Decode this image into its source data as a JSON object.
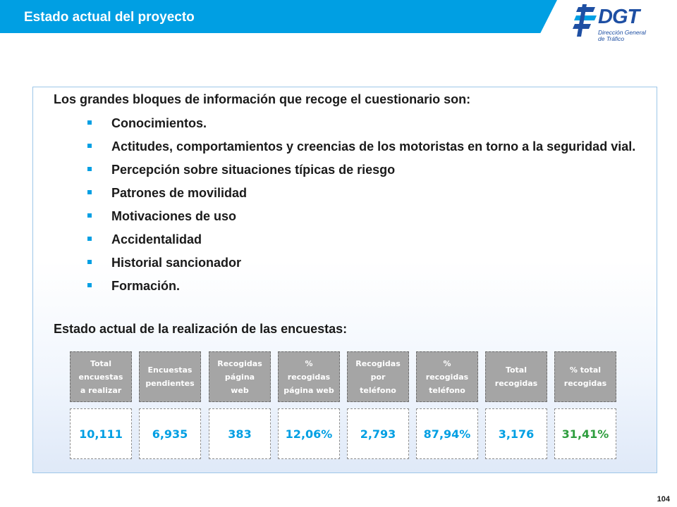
{
  "header": {
    "title": "Estado actual del proyecto"
  },
  "logo": {
    "word": "DGT",
    "subtitle_lines": [
      "Dirección General",
      "de Tráfico"
    ],
    "color": "#1e4fa3"
  },
  "intro": "Los grandes bloques de información que recoge el cuestionario son:",
  "bullets": [
    "Conocimientos.",
    "Actitudes, comportamientos y creencias de los motoristas en torno a la seguridad vial.",
    "Percepción sobre situaciones típicas de riesgo",
    "Patrones de movilidad",
    "Motivaciones de uso",
    "Accidentalidad",
    "Historial sancionador",
    "Formación."
  ],
  "subheading": "Estado actual de la realización de las encuestas:",
  "stats": [
    {
      "label": "Total\nencuestas\na realizar",
      "value": "10,111",
      "color": "#009fe3"
    },
    {
      "label": "Encuestas\npendientes",
      "value": "6,935",
      "color": "#009fe3"
    },
    {
      "label": "Recogidas\npágina\nweb",
      "value": "383",
      "color": "#009fe3"
    },
    {
      "label": "%\nrecogidas\npágina web",
      "value": "12,06%",
      "color": "#009fe3"
    },
    {
      "label": "Recogidas\npor\nteléfono",
      "value": "2,793",
      "color": "#009fe3"
    },
    {
      "label": "%\nrecogidas\nteléfono",
      "value": "87,94%",
      "color": "#009fe3"
    },
    {
      "label": "Total\nrecogidas",
      "value": "3,176",
      "color": "#009fe3"
    },
    {
      "label": "% total\nrecogidas",
      "value": "31,41%",
      "color": "#2e9e3e"
    }
  ],
  "page_number": "104",
  "colors": {
    "accent": "#009fe3",
    "border": "#9ec7e8",
    "bullet": "#009fe3"
  }
}
